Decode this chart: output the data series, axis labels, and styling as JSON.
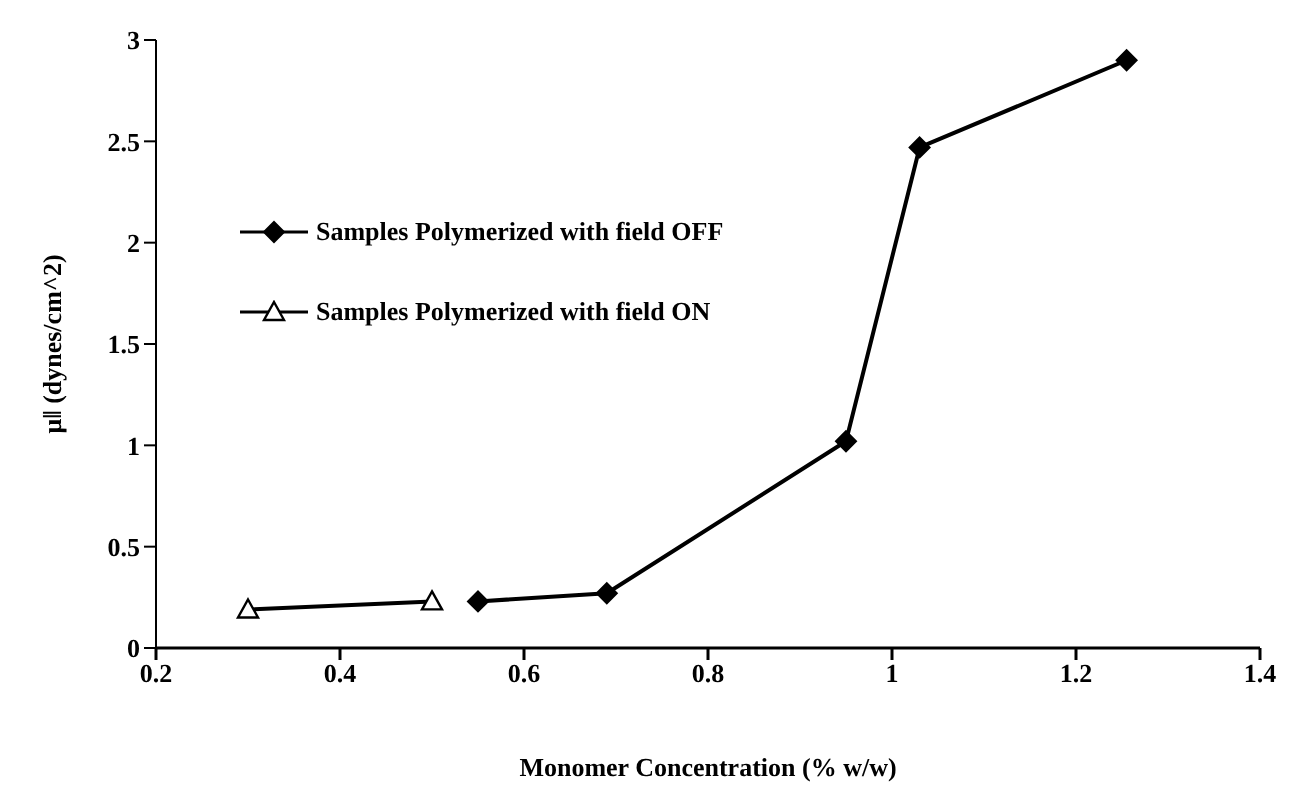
{
  "chart_data": {
    "type": "line",
    "xlabel": "Monomer Concentration (% w/w)",
    "ylabel": "μ‖ (dynes/cm^2)",
    "xlim": [
      0.2,
      1.4
    ],
    "xticks": [
      0.2,
      0.4,
      0.6,
      0.8,
      1,
      1.2,
      1.4
    ],
    "ylim": [
      0,
      3
    ],
    "yticks": [
      0,
      0.5,
      1,
      1.5,
      2,
      2.5,
      3
    ],
    "grid": false,
    "legend": "top left",
    "series": [
      {
        "name": "Samples Polymerized with field OFF",
        "color": "#000000",
        "marker": "diamond",
        "x": [
          0.55,
          0.69,
          0.95,
          1.03,
          1.255
        ],
        "values": [
          0.23,
          0.27,
          1.02,
          2.47,
          2.9
        ]
      },
      {
        "name": "Samples Polymerized with field ON",
        "color": "#000000",
        "marker": "triangle",
        "x": [
          0.3,
          0.5
        ],
        "values": [
          0.19,
          0.23
        ]
      }
    ]
  }
}
